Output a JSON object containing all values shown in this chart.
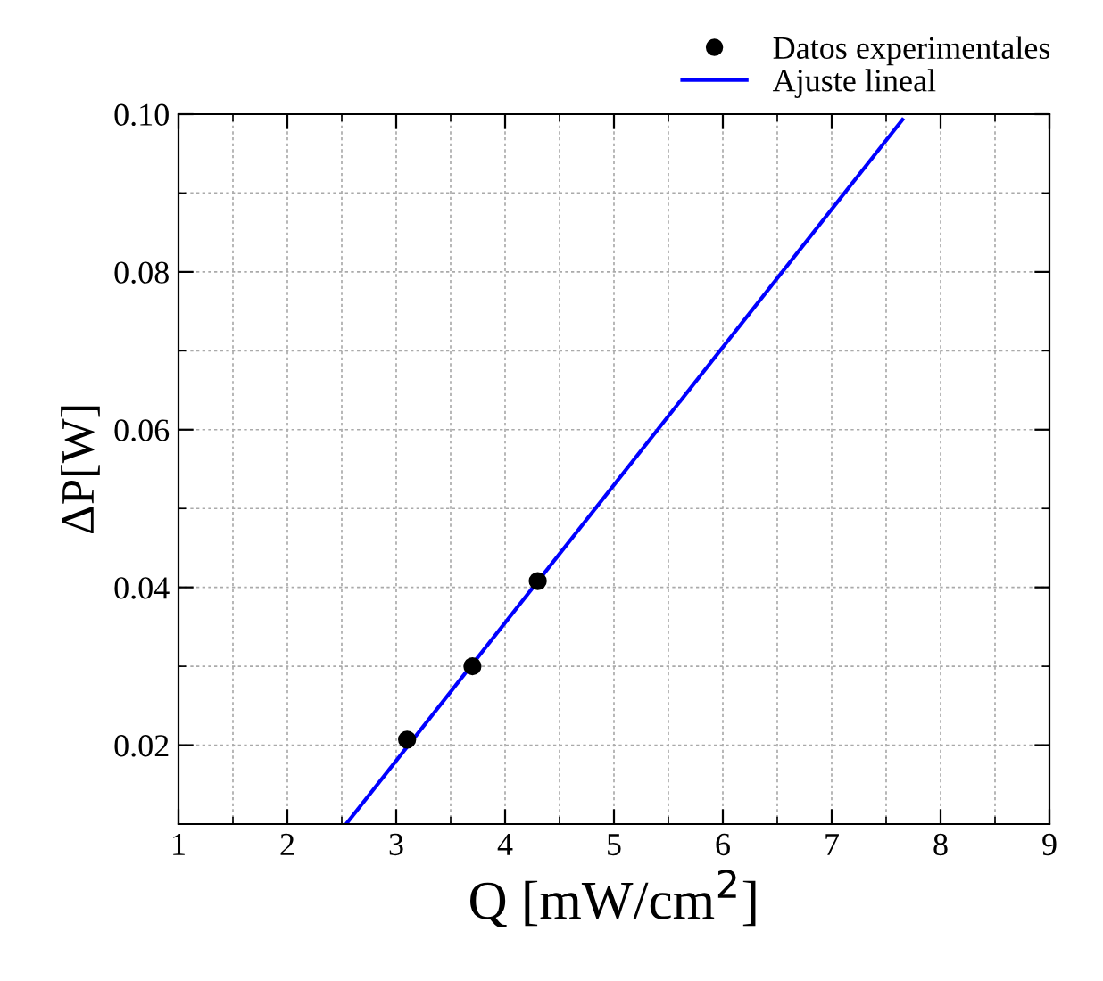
{
  "chart_data": {
    "type": "scatter",
    "xlabel": "Q [mW/cm$^{2}$]",
    "ylabel": "ΔP[W]",
    "series": [
      {
        "name": "Datos experimentales",
        "color": "#000000",
        "marker": "circle",
        "x": [
          3.1,
          3.7,
          4.3
        ],
        "values": [
          0.0207,
          0.03,
          0.0408
        ]
      },
      {
        "name": "Ajuste lineal",
        "type": "line",
        "color": "#0000ff",
        "line_style": "solid",
        "x": [
          2.54,
          7.65
        ],
        "values": [
          0.01,
          0.0993
        ]
      }
    ],
    "xlim": [
      1,
      9
    ],
    "xticks": [
      1,
      2,
      3,
      4,
      5,
      6,
      7,
      8,
      9
    ],
    "ylim": [
      0.01,
      0.1
    ],
    "yticks": [
      0.02,
      0.04,
      0.06,
      0.08,
      {
        "value": 0.1,
        "label": "0.10"
      }
    ],
    "grid": true,
    "legend": "top right"
  }
}
